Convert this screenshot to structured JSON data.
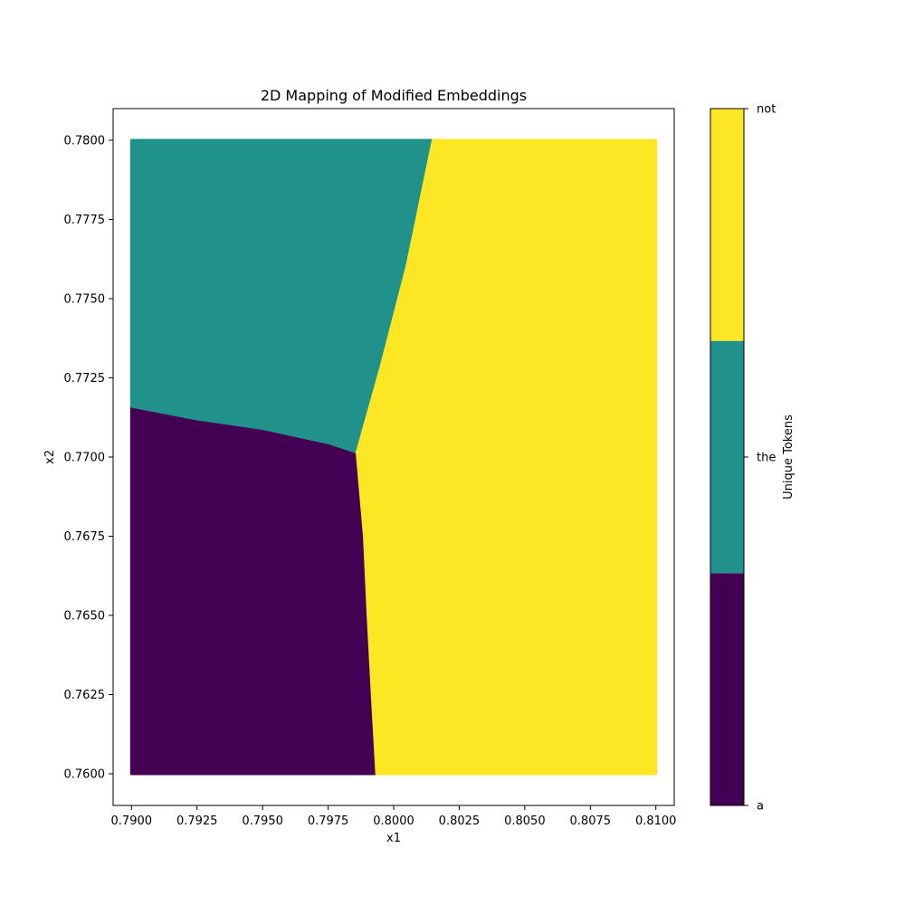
{
  "chart_data": {
    "type": "heatmap",
    "title": "2D Mapping of Modified Embeddings",
    "xlabel": "x1",
    "ylabel": "x2",
    "xlim": [
      0.7893,
      0.8107
    ],
    "ylim": [
      0.759,
      0.781
    ],
    "x_ticks": [
      "0.7900",
      "0.7925",
      "0.7950",
      "0.7975",
      "0.8000",
      "0.8025",
      "0.8050",
      "0.8075",
      "0.8100"
    ],
    "y_ticks": [
      "0.7600",
      "0.7625",
      "0.7650",
      "0.7675",
      "0.7700",
      "0.7725",
      "0.7750",
      "0.7775",
      "0.7800"
    ],
    "grid": false,
    "data_extent": {
      "x": [
        0.79,
        0.81
      ],
      "y": [
        0.76,
        0.78
      ]
    },
    "regions": [
      {
        "name": "a",
        "color": "#440154",
        "polygon": [
          [
            0.79,
            0.76
          ],
          [
            0.79935,
            0.76
          ],
          [
            0.79918,
            0.7625
          ],
          [
            0.79902,
            0.765
          ],
          [
            0.79888,
            0.7675
          ],
          [
            0.7986,
            0.77015
          ],
          [
            0.7975,
            0.77045
          ],
          [
            0.795,
            0.7709
          ],
          [
            0.7925,
            0.7712
          ],
          [
            0.79,
            0.7716
          ]
        ]
      },
      {
        "name": "the",
        "color": "#21918c",
        "polygon": [
          [
            0.79,
            0.7716
          ],
          [
            0.7925,
            0.7712
          ],
          [
            0.795,
            0.7709
          ],
          [
            0.7975,
            0.77045
          ],
          [
            0.7986,
            0.77015
          ],
          [
            0.7995,
            0.7728
          ],
          [
            0.8005,
            0.776
          ],
          [
            0.8015,
            0.78
          ],
          [
            0.79,
            0.78
          ]
        ]
      },
      {
        "name": "not",
        "color": "#fde725",
        "polygon": [
          [
            0.8015,
            0.78
          ],
          [
            0.81,
            0.78
          ],
          [
            0.81,
            0.76
          ],
          [
            0.79935,
            0.76
          ],
          [
            0.79918,
            0.7625
          ],
          [
            0.79902,
            0.765
          ],
          [
            0.79888,
            0.7675
          ],
          [
            0.7986,
            0.77015
          ],
          [
            0.7995,
            0.7728
          ],
          [
            0.8005,
            0.776
          ]
        ]
      }
    ],
    "colorbar": {
      "label": "Unique Tokens",
      "ticks": [
        {
          "label": "a",
          "position": 0
        },
        {
          "label": "the",
          "position": 0.5
        },
        {
          "label": "not",
          "position": 1
        }
      ],
      "segments": [
        {
          "name": "a",
          "color": "#440154"
        },
        {
          "name": "the",
          "color": "#21918c"
        },
        {
          "name": "not",
          "color": "#fde725"
        }
      ]
    }
  }
}
